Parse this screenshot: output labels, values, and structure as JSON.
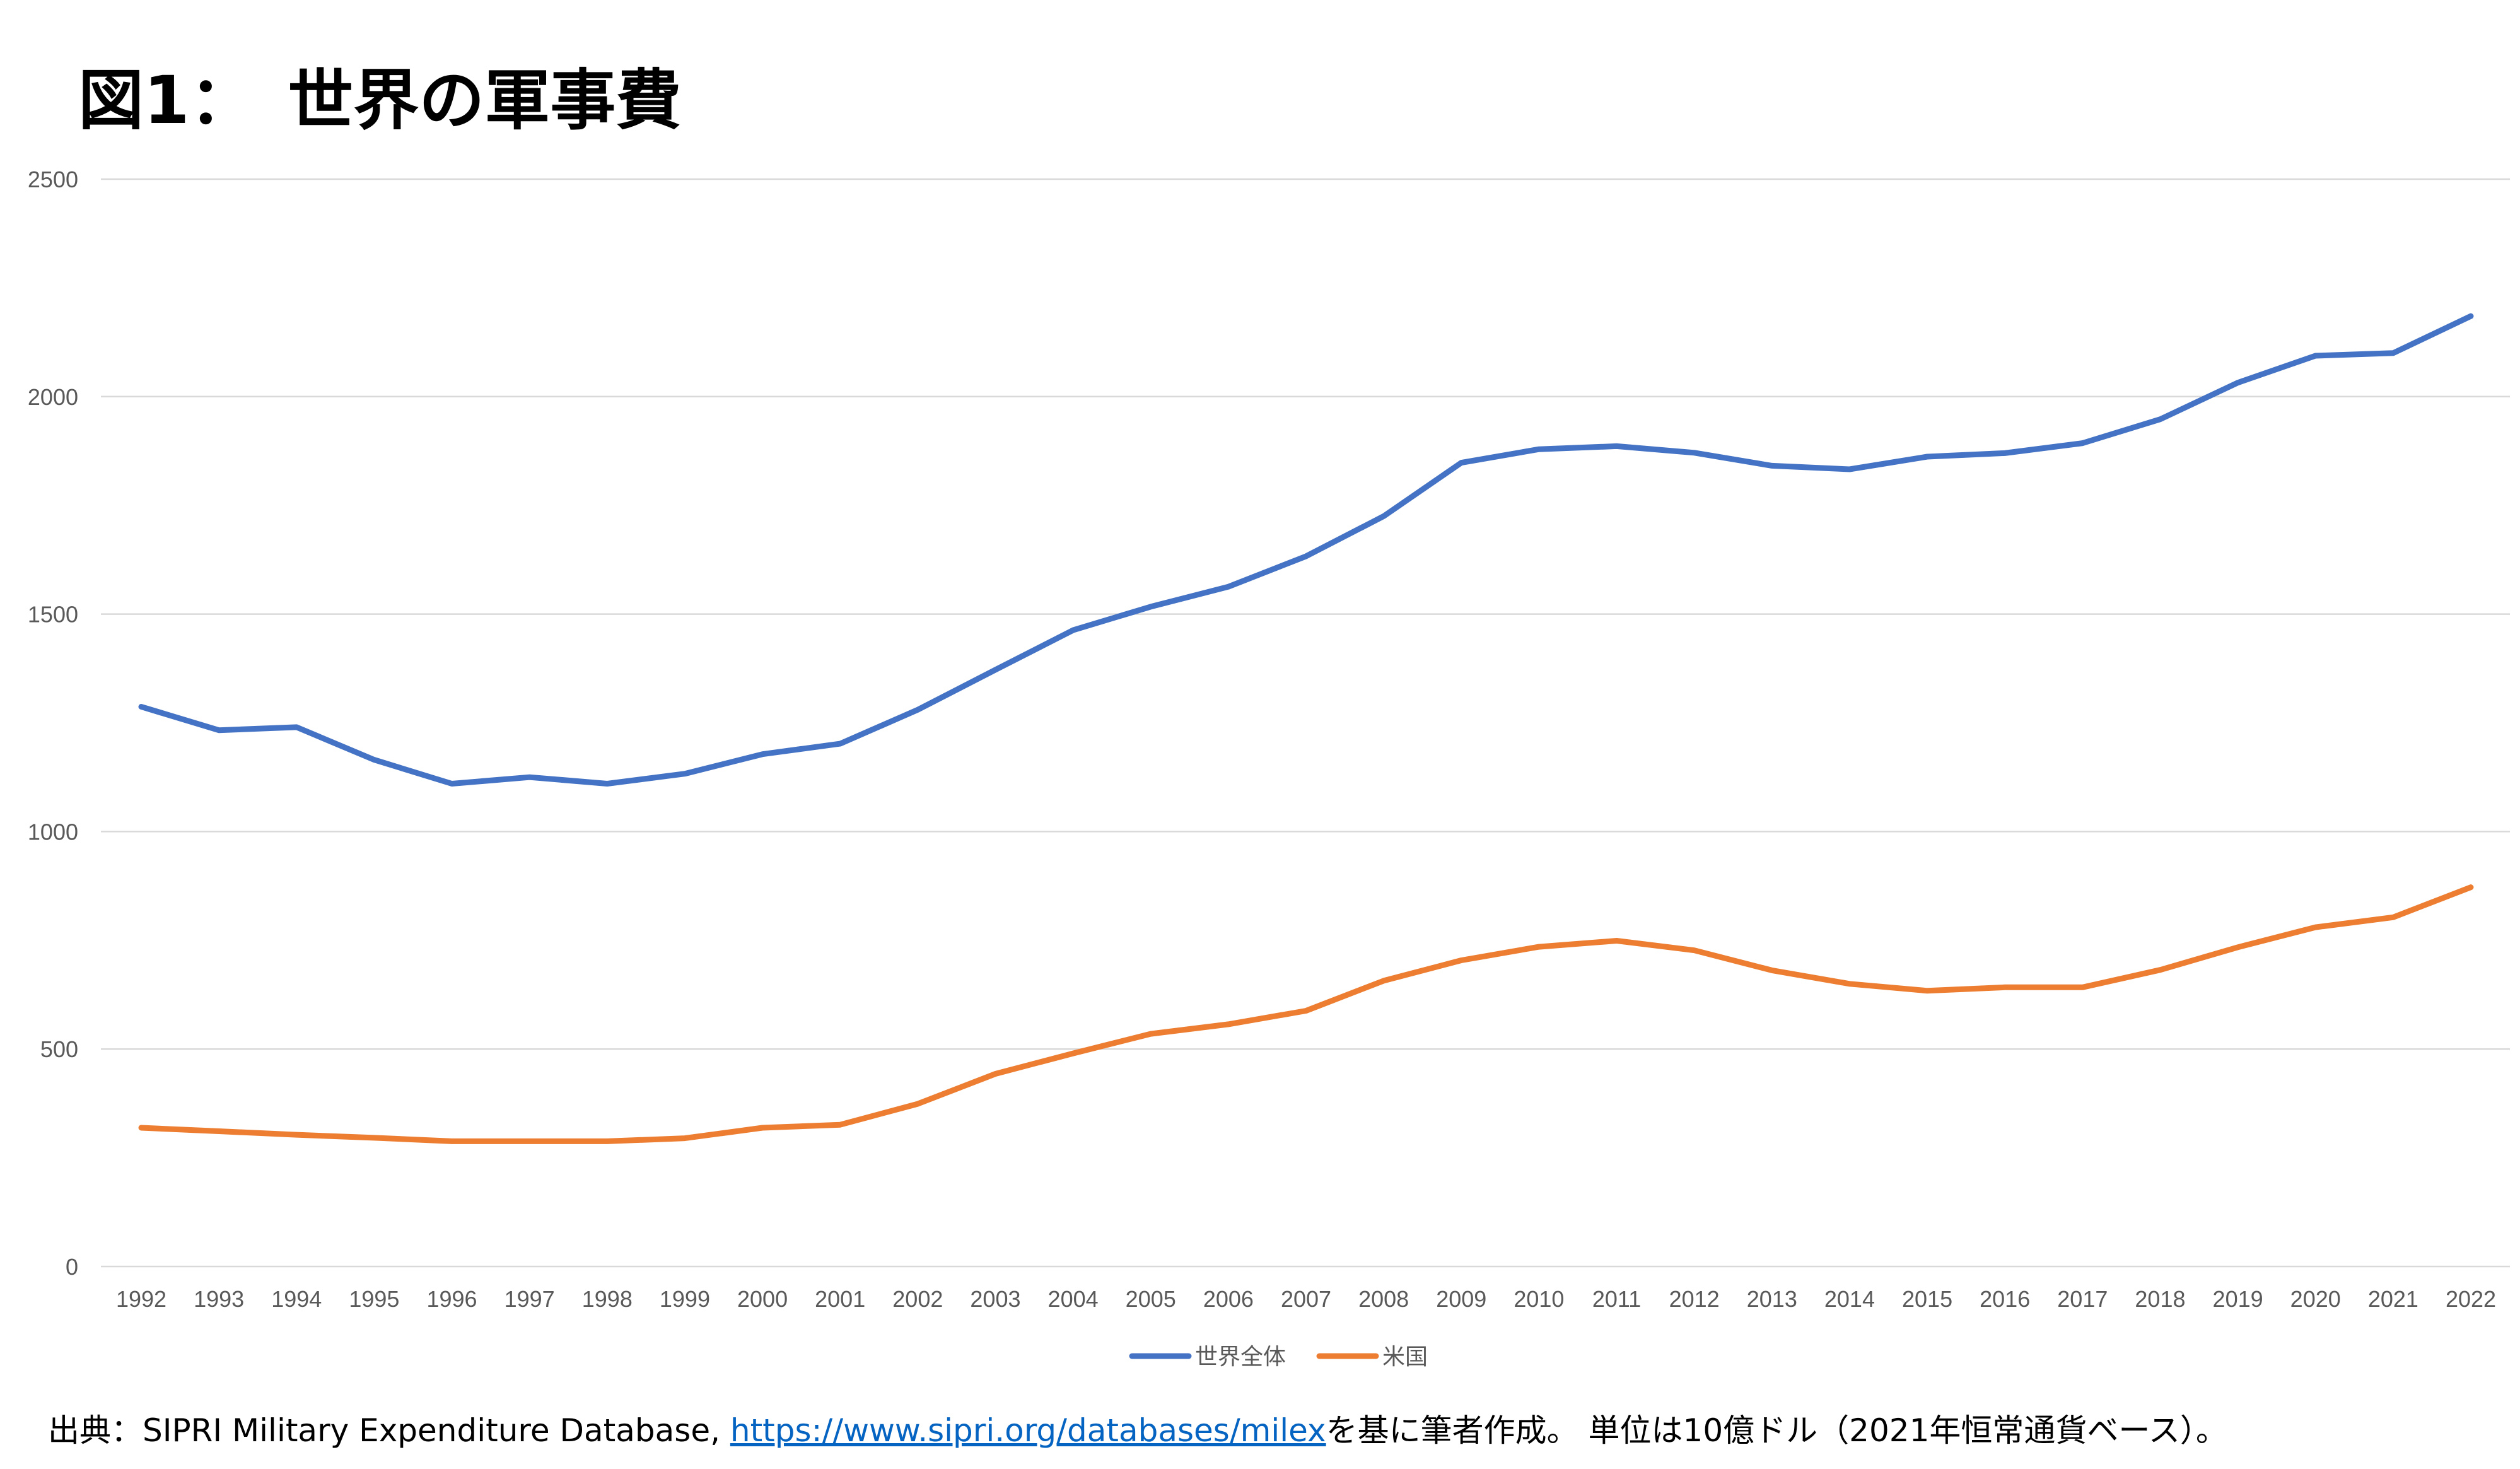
{
  "chart_data": {
    "type": "line",
    "title": "図1：　世界の軍事費",
    "xlabel": "",
    "ylabel": "",
    "ylim": [
      0,
      2500
    ],
    "yticks": [
      0,
      500,
      1000,
      1500,
      2000,
      2500
    ],
    "grid": true,
    "legend_position": "bottom",
    "x": [
      1992,
      1993,
      1994,
      1995,
      1996,
      1997,
      1998,
      1999,
      2000,
      2001,
      2002,
      2003,
      2004,
      2005,
      2006,
      2007,
      2008,
      2009,
      2010,
      2011,
      2012,
      2013,
      2014,
      2015,
      2016,
      2017,
      2018,
      2019,
      2020,
      2021,
      2022
    ],
    "series": [
      {
        "name": "世界全体",
        "color": "#4472c4",
        "values": [
          1287,
          1233,
          1240,
          1165,
          1110,
          1125,
          1110,
          1133,
          1178,
          1202,
          1280,
          1372,
          1463,
          1517,
          1563,
          1633,
          1725,
          1848,
          1879,
          1886,
          1871,
          1841,
          1833,
          1862,
          1870,
          1893,
          1948,
          2032,
          2094,
          2100,
          2185
        ]
      },
      {
        "name": "米国",
        "color": "#ed7d31",
        "values": [
          319,
          311,
          303,
          296,
          288,
          288,
          288,
          295,
          319,
          326,
          374,
          443,
          490,
          535,
          557,
          588,
          657,
          704,
          735,
          749,
          727,
          681,
          650,
          634,
          642,
          642,
          682,
          734,
          780,
          803,
          872
        ]
      }
    ]
  },
  "source": {
    "prefix": "出典：SIPRI Military Expenditure Database, ",
    "link": "https://www.sipri.org/databases/milex",
    "suffix": "を基に筆者作成。 単位は10億ドル（2021年恒常通貨ベース）。"
  }
}
